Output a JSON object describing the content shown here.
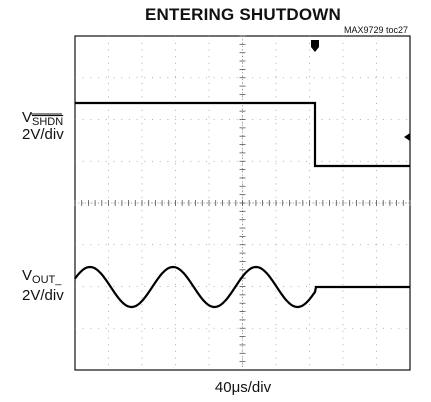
{
  "title": "ENTERING SHUTDOWN",
  "figure_tag": "MAX9729 toc27",
  "channels": [
    {
      "symbol": "V",
      "subscript": "SHDN",
      "scale": "2V/div"
    },
    {
      "symbol": "V",
      "subscript": "OUT_",
      "scale": "2V/div"
    }
  ],
  "x_scale": "40μs/div"
}
